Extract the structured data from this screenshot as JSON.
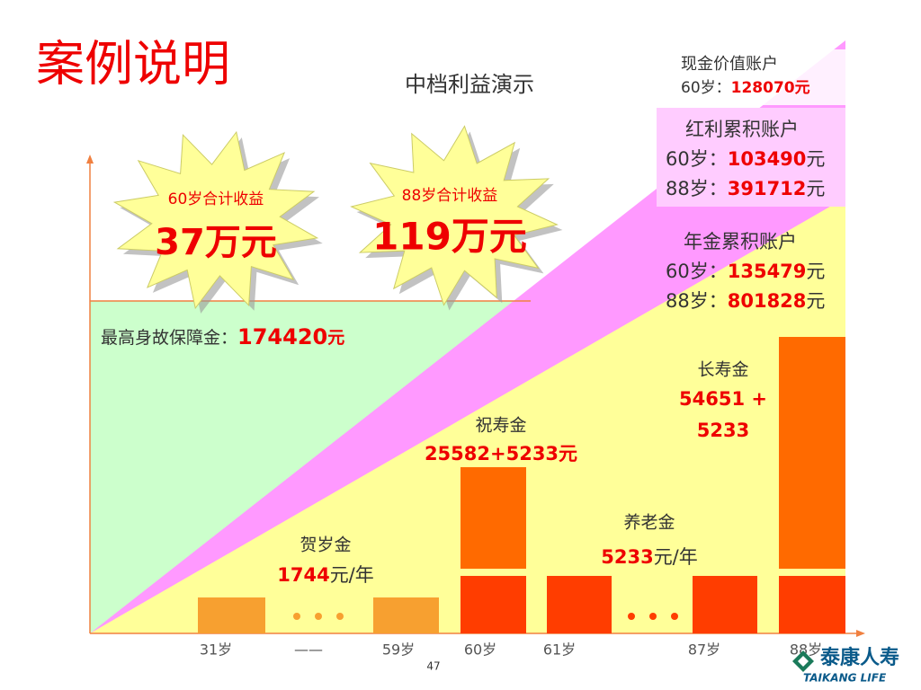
{
  "title": "案例说明",
  "subtitle": "中档利益演示",
  "cash_account": {
    "name": "现金价值账户",
    "rows": [
      {
        "label": "60岁：",
        "amount": "128070",
        "unit": "元"
      }
    ]
  },
  "bonus_account": {
    "name": "红利累积账户",
    "rows": [
      {
        "label": "60岁：",
        "amount": "103490",
        "unit": "元"
      },
      {
        "label": "88岁：",
        "amount": "391712",
        "unit": "元"
      }
    ]
  },
  "annuity_account": {
    "name": "年金累积账户",
    "rows": [
      {
        "label": "60岁：",
        "amount": "135479",
        "unit": "元"
      },
      {
        "label": "88岁：",
        "amount": "801828",
        "unit": "元"
      }
    ]
  },
  "burst_60": {
    "label": "60岁合计收益",
    "amount": "37万元"
  },
  "burst_88": {
    "label": "88岁合计收益",
    "amount": "119万元"
  },
  "death_benefit": {
    "label": "最高身故保障金：",
    "amount": "174420",
    "unit": "元"
  },
  "longevity": {
    "name": "长寿金",
    "line1": "54651 +",
    "line2": "5233"
  },
  "birthday": {
    "name": "祝寿金",
    "amount": "25582+5233元"
  },
  "pension": {
    "name": "养老金",
    "amount": "5233",
    "unit": "元/年"
  },
  "new_year": {
    "name": "贺岁金",
    "amount": "1744",
    "unit": "元/年"
  },
  "x_labels": [
    "31岁",
    "——",
    "59岁",
    "60岁",
    "61岁",
    "87岁",
    "88岁"
  ],
  "page_number": "47",
  "logo": {
    "cn": "泰康人寿",
    "en": "TAIKANG LIFE"
  }
}
